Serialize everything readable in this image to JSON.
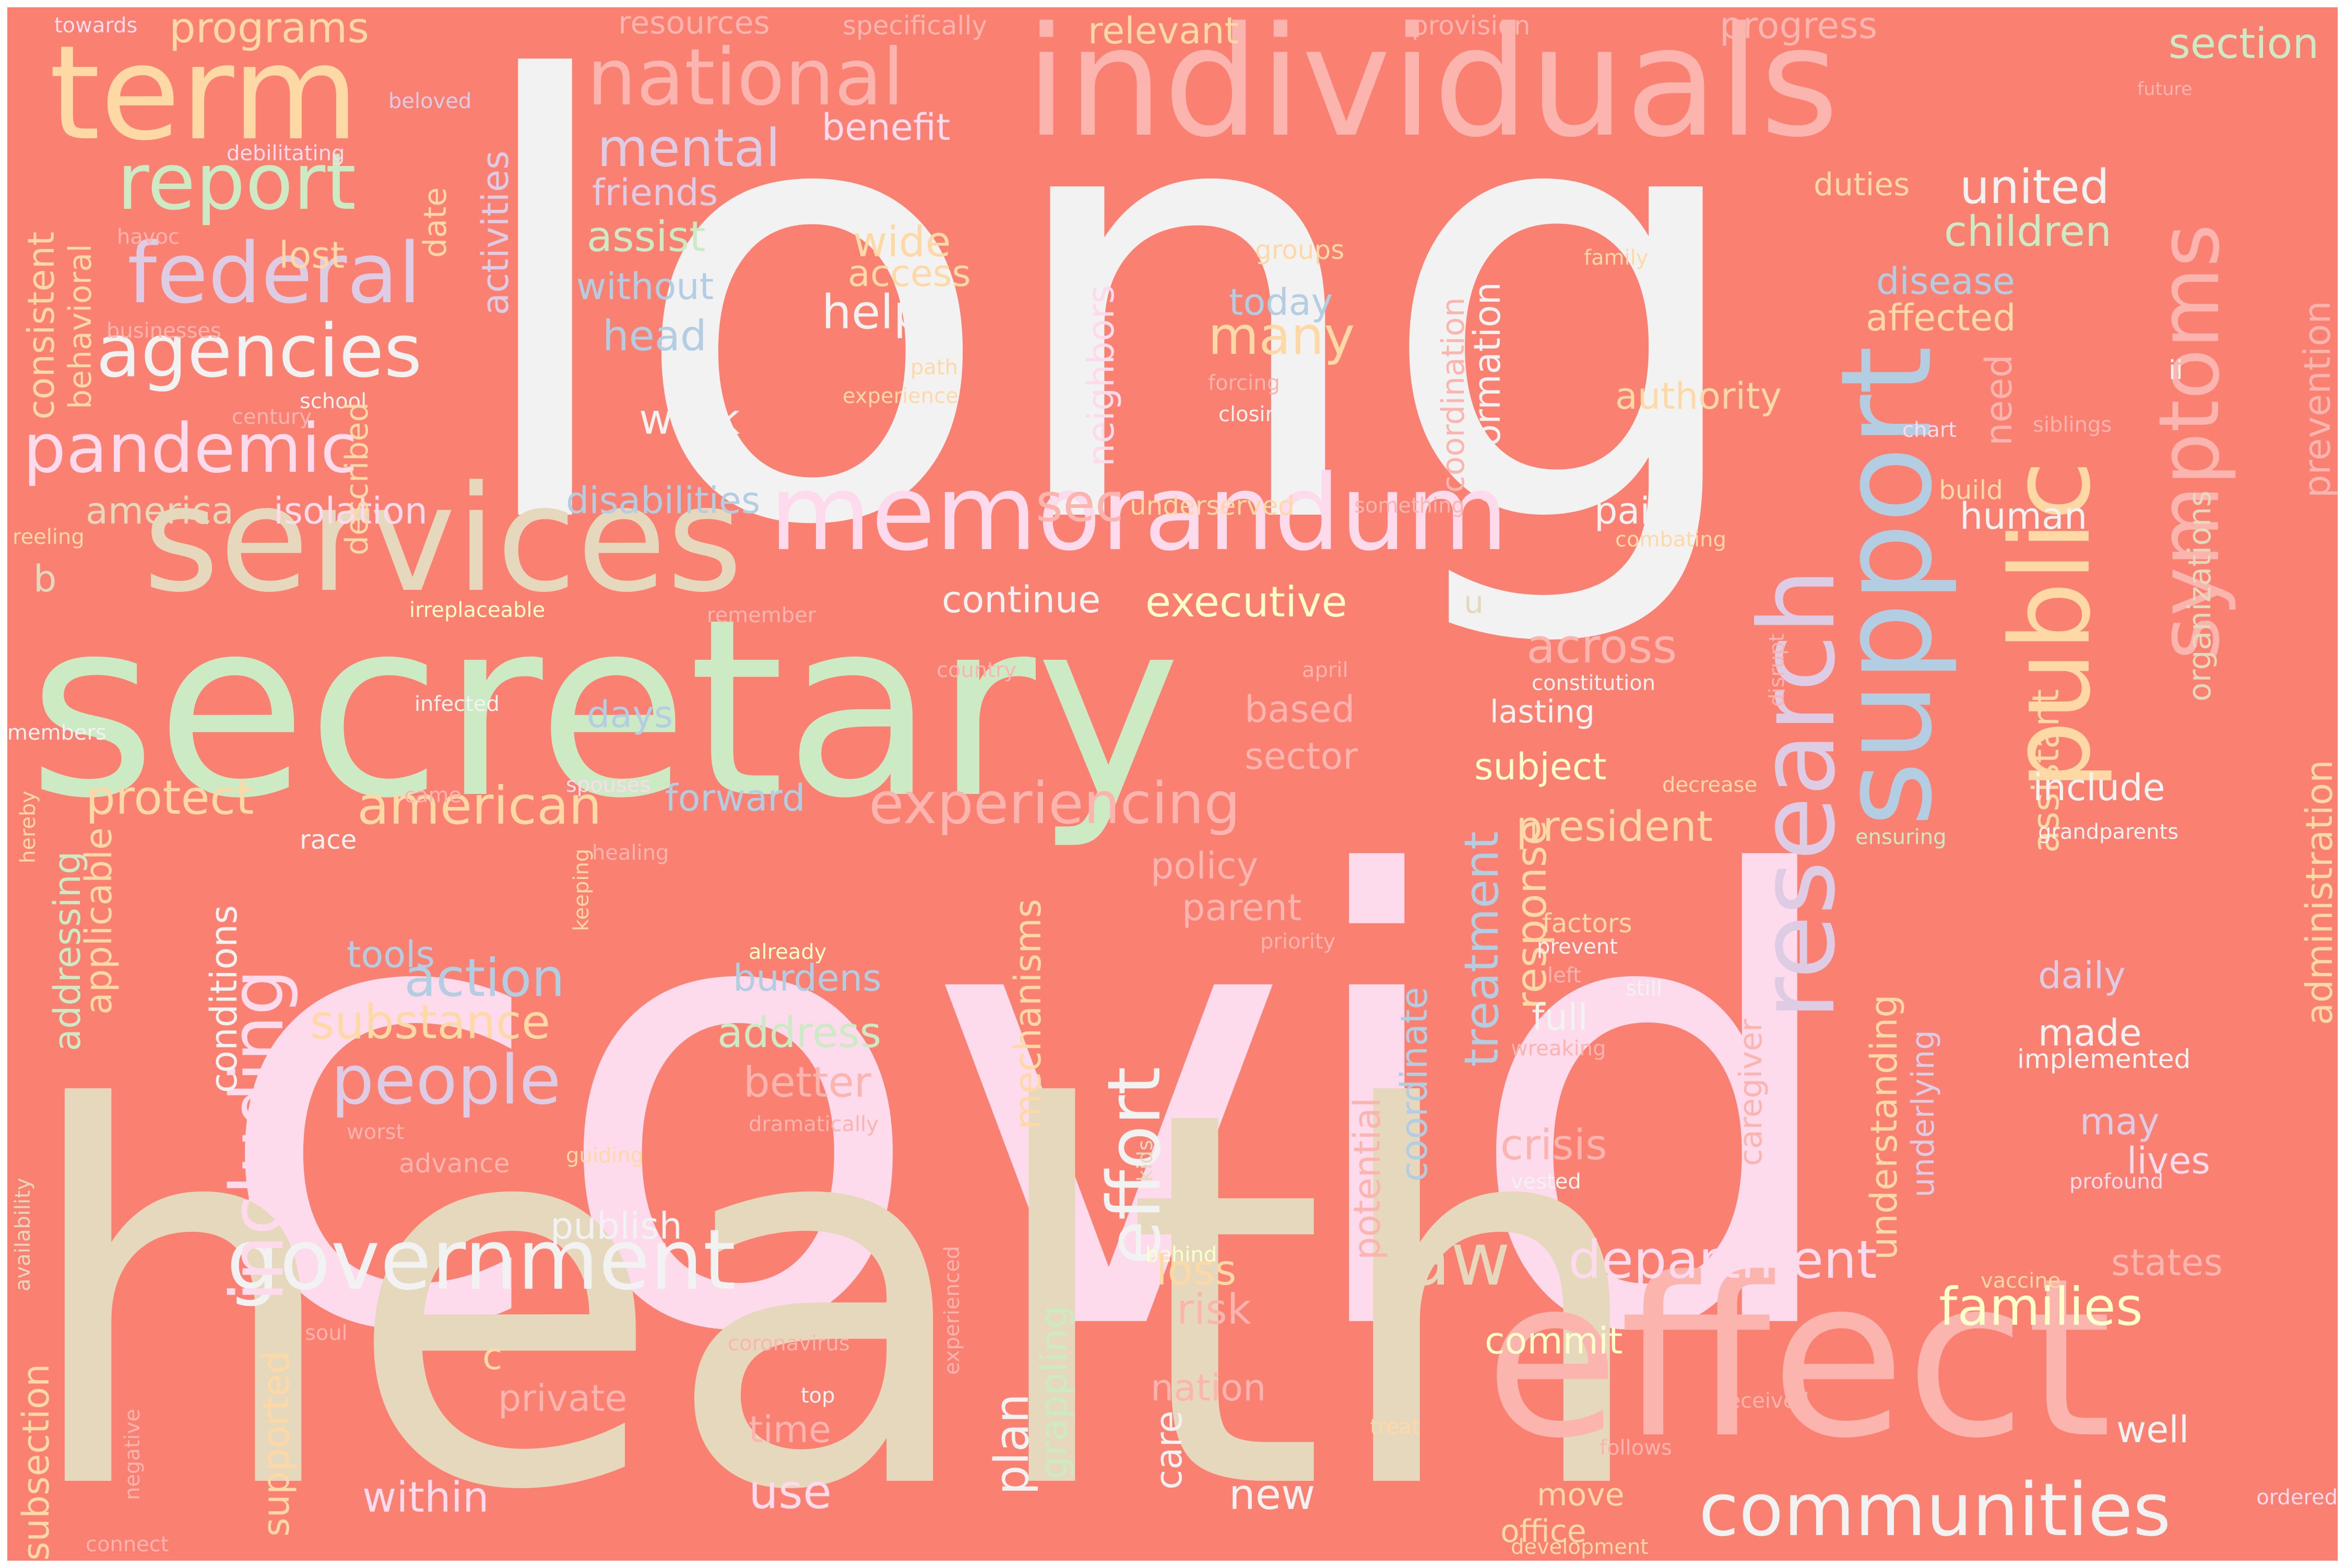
{
  "palette": {
    "background": "#FA8072",
    "white": "#F2F2F2",
    "pink": "#FDDAEC",
    "green": "#CCEBC5",
    "tan": "#E5D8BD",
    "blue": "#B3CDE3",
    "lavender": "#DECBE4",
    "yellow": "#FFFFCC",
    "peach": "#FED9A6",
    "rose": "#FBB4AE"
  },
  "words": [
    "long",
    "covid",
    "health",
    "secretary",
    "individuals",
    "effect",
    "services",
    "memorandum",
    "term",
    "support",
    "public",
    "research",
    "national",
    "symptoms",
    "federal",
    "agencies",
    "report",
    "pandemic",
    "government",
    "communities",
    "including",
    "effort",
    "law",
    "experiencing",
    "american",
    "people",
    "department",
    "families",
    "action",
    "substance",
    "protect",
    "mental",
    "help",
    "many",
    "executive",
    "continue",
    "across",
    "days",
    "sector",
    "based",
    "prevention",
    "administration",
    "assistant",
    "treatment",
    "response",
    "children",
    "united",
    "disease",
    "affected",
    "duties",
    "programs",
    "resources",
    "progress",
    "section",
    "relevant",
    "specifically",
    "provision",
    "towards",
    "future",
    "beloved",
    "debilitating",
    "havoc",
    "businesses",
    "century",
    "school",
    "lost",
    "consistent",
    "behavioral",
    "date",
    "activities",
    "benefit",
    "friends",
    "assist",
    "without",
    "head",
    "wide",
    "access",
    "groups",
    "today",
    "forcing",
    "closing",
    "family",
    "chart",
    "siblings",
    "ii",
    "authority",
    "need",
    "build",
    "human",
    "pain",
    "combating",
    "coordination",
    "information",
    "neighbors",
    "work",
    "underserved",
    "something",
    "disabilities",
    "isolation",
    "america",
    "reeling",
    "irreplaceable",
    "remember",
    "sec",
    "u",
    "b",
    "infected",
    "members",
    "country",
    "april",
    "constitution",
    "disrupt",
    "lasting",
    "subject",
    "decrease",
    "include",
    "organizations",
    "president",
    "ensuring",
    "grandparents",
    "described",
    "came",
    "spouses",
    "hereby",
    "race",
    "healing",
    "keeping",
    "forward",
    "applicable",
    "addressing",
    "tools",
    "policy",
    "parent",
    "priority",
    "already",
    "burdens",
    "address",
    "better",
    "mechanisms",
    "factors",
    "prevent",
    "left",
    "still",
    "full",
    "wreaking",
    "made",
    "implemented",
    "daily",
    "may",
    "lives",
    "profound",
    "understanding",
    "underlying",
    "caregiver",
    "coordinate",
    "crisis",
    "potential",
    "conditions",
    "availability",
    "worst",
    "advance",
    "guiding",
    "dramatically",
    "kids",
    "vested",
    "publish",
    "behind",
    "loss",
    "risk",
    "nation",
    "private",
    "time",
    "care",
    "new",
    "grappling",
    "plan",
    "treat",
    "follows",
    "received",
    "vaccine",
    "states",
    "well",
    "move",
    "office",
    "development",
    "ordered",
    "within",
    "use",
    "supported",
    "subsection",
    "negative",
    "connect",
    "soul",
    "coronavirus",
    "c",
    "experienced",
    "top",
    "commit",
    "path",
    "experience"
  ]
}
